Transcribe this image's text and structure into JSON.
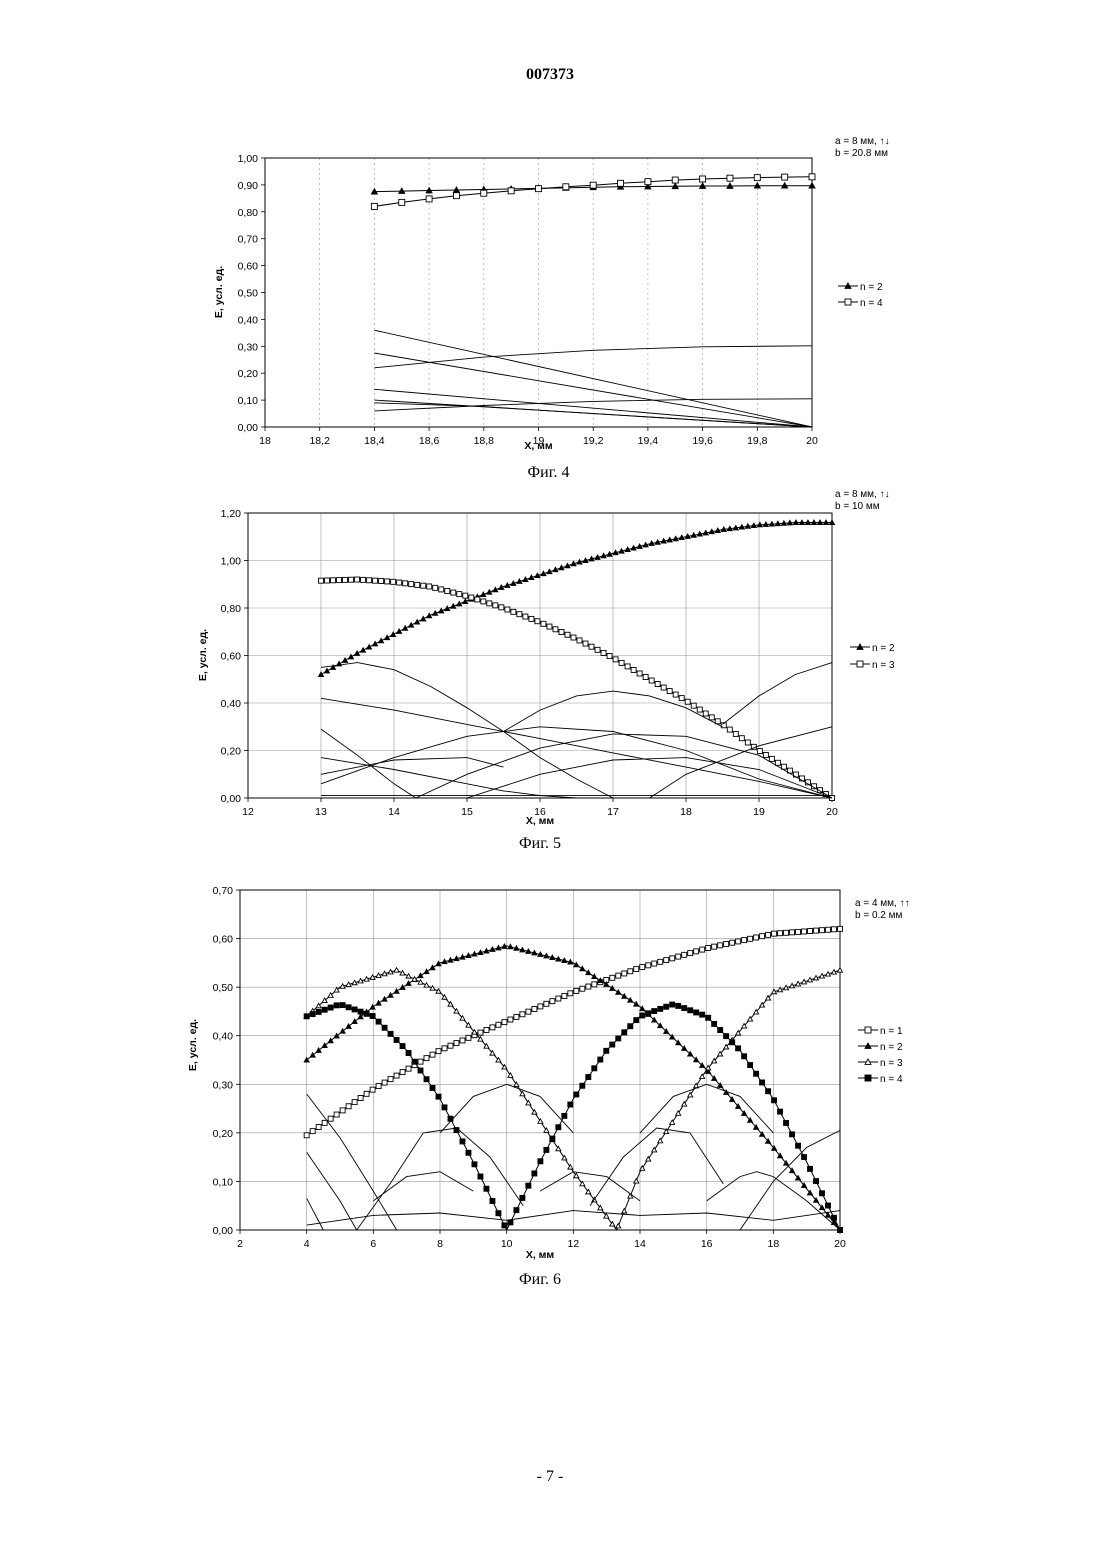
{
  "header": {
    "doc_number": "007373"
  },
  "footer": {
    "page_number": "- 7 -"
  },
  "chart_data": [
    {
      "type": "line",
      "caption": "Фиг. 4",
      "annotation": [
        "a = 8 мм, ↑↓",
        "b = 20.8 мм"
      ],
      "xlabel": "X, мм",
      "ylabel": "E, усл. ед.",
      "xlim": [
        18,
        20
      ],
      "ylim": [
        0,
        1.0
      ],
      "xticks": [
        "18",
        "18,2",
        "18,4",
        "18,6",
        "18,8",
        "19",
        "19,2",
        "19,4",
        "19,6",
        "19,8",
        "20"
      ],
      "yticks": [
        "0,00",
        "0,10",
        "0,20",
        "0,30",
        "0,40",
        "0,50",
        "0,60",
        "0,70",
        "0,80",
        "0,90",
        "1,00"
      ],
      "grid": "vertical",
      "legend": [
        {
          "name": "n = 2",
          "marker": "triangle-filled"
        },
        {
          "name": "n = 4",
          "marker": "square-open"
        }
      ],
      "series": [
        {
          "name": "n = 2",
          "marker": "triangle-filled",
          "x": [
            18.4,
            18.5,
            18.6,
            18.7,
            18.8,
            18.9,
            19.0,
            19.1,
            19.2,
            19.3,
            19.4,
            19.5,
            19.6,
            19.7,
            19.8,
            19.9,
            20.0
          ],
          "y": [
            0.875,
            0.877,
            0.879,
            0.881,
            0.883,
            0.885,
            0.887,
            0.889,
            0.891,
            0.893,
            0.894,
            0.895,
            0.896,
            0.896,
            0.897,
            0.897,
            0.897
          ]
        },
        {
          "name": "n = 4",
          "marker": "square-open",
          "x": [
            18.4,
            18.5,
            18.6,
            18.7,
            18.8,
            18.9,
            19.0,
            19.1,
            19.2,
            19.3,
            19.4,
            19.5,
            19.6,
            19.7,
            19.8,
            19.9,
            20.0
          ],
          "y": [
            0.82,
            0.835,
            0.848,
            0.86,
            0.869,
            0.878,
            0.886,
            0.893,
            0.899,
            0.906,
            0.912,
            0.918,
            0.922,
            0.925,
            0.927,
            0.929,
            0.93
          ]
        },
        {
          "x": [
            18.4,
            20.0
          ],
          "y": [
            0.36,
            0.0
          ]
        },
        {
          "x": [
            18.4,
            20.0
          ],
          "y": [
            0.275,
            0.0
          ]
        },
        {
          "x": [
            18.4,
            18.8,
            19.2,
            19.6,
            20.0
          ],
          "y": [
            0.22,
            0.26,
            0.285,
            0.298,
            0.302
          ]
        },
        {
          "x": [
            18.4,
            20.0
          ],
          "y": [
            0.14,
            0.0
          ]
        },
        {
          "x": [
            18.4,
            20.0
          ],
          "y": [
            0.1,
            0.0
          ]
        },
        {
          "x": [
            18.4,
            18.8,
            19.2,
            19.6,
            20.0
          ],
          "y": [
            0.09,
            0.076,
            0.05,
            0.025,
            0.0
          ]
        },
        {
          "x": [
            18.4,
            18.8,
            19.2,
            19.6,
            20.0
          ],
          "y": [
            0.06,
            0.08,
            0.095,
            0.103,
            0.105
          ]
        }
      ]
    },
    {
      "type": "line",
      "caption": "Фиг. 5",
      "annotation": [
        "a = 8 мм, ↑↓",
        "b = 10 мм"
      ],
      "xlabel": "X, мм",
      "ylabel": "E, усл. ед.",
      "xlim": [
        12,
        20
      ],
      "ylim": [
        0,
        1.2
      ],
      "xticks": [
        "12",
        "13",
        "14",
        "15",
        "16",
        "17",
        "18",
        "19",
        "20"
      ],
      "yticks": [
        "0,00",
        "0,20",
        "0,40",
        "0,60",
        "0,80",
        "1,00",
        "1,20"
      ],
      "grid": "both",
      "legend": [
        {
          "name": "n = 2",
          "marker": "triangle-filled"
        },
        {
          "name": "n = 3",
          "marker": "square-open"
        }
      ],
      "series": [
        {
          "name": "n = 2",
          "marker": "triangle-filled",
          "x": [
            13,
            13.5,
            14,
            14.5,
            15,
            15.5,
            16,
            16.5,
            17,
            17.5,
            18,
            18.5,
            19,
            19.5,
            20
          ],
          "y": [
            0.52,
            0.61,
            0.69,
            0.77,
            0.83,
            0.89,
            0.94,
            0.99,
            1.03,
            1.07,
            1.1,
            1.13,
            1.15,
            1.16,
            1.16
          ]
        },
        {
          "name": "n = 3",
          "marker": "square-open",
          "x": [
            13,
            13.5,
            14,
            14.5,
            15,
            15.5,
            16,
            16.5,
            17,
            17.5,
            18,
            18.5,
            19,
            19.5,
            20
          ],
          "y": [
            0.915,
            0.92,
            0.91,
            0.89,
            0.85,
            0.8,
            0.74,
            0.67,
            0.59,
            0.5,
            0.41,
            0.31,
            0.2,
            0.1,
            0.0
          ]
        },
        {
          "x": [
            13,
            13.5,
            14,
            14.5,
            15,
            15.5,
            16,
            16.5,
            17
          ],
          "y": [
            0.55,
            0.57,
            0.54,
            0.47,
            0.38,
            0.28,
            0.17,
            0.08,
            0.0
          ]
        },
        {
          "x": [
            13,
            14,
            15,
            16,
            17,
            18,
            19,
            20
          ],
          "y": [
            0.42,
            0.37,
            0.31,
            0.25,
            0.19,
            0.13,
            0.07,
            0.0
          ]
        },
        {
          "x": [
            13,
            13.5,
            14,
            14.3
          ],
          "y": [
            0.29,
            0.18,
            0.06,
            0.0
          ]
        },
        {
          "x": [
            14.3,
            15,
            16,
            17,
            18,
            19,
            20
          ],
          "y": [
            0.0,
            0.1,
            0.21,
            0.27,
            0.26,
            0.18,
            0.0
          ]
        },
        {
          "x": [
            13,
            14,
            15,
            16,
            17,
            18,
            19,
            20
          ],
          "y": [
            0.06,
            0.17,
            0.26,
            0.3,
            0.28,
            0.2,
            0.08,
            0.0
          ]
        },
        {
          "x": [
            13,
            14,
            15,
            15.5,
            16,
            16.5,
            16.7
          ],
          "y": [
            0.17,
            0.12,
            0.06,
            0.03,
            0.01,
            0.0,
            0.0
          ]
        },
        {
          "x": [
            15.5,
            16,
            16.5,
            17,
            17.5,
            18,
            18.5
          ],
          "y": [
            0.28,
            0.37,
            0.43,
            0.45,
            0.43,
            0.38,
            0.3
          ]
        },
        {
          "x": [
            13,
            14,
            15,
            15.5
          ],
          "y": [
            0.1,
            0.16,
            0.17,
            0.13
          ]
        },
        {
          "x": [
            17.5,
            18,
            19,
            20
          ],
          "y": [
            0.0,
            0.1,
            0.22,
            0.3
          ]
        },
        {
          "x": [
            15,
            16,
            17,
            18,
            19,
            20
          ],
          "y": [
            0.0,
            0.1,
            0.16,
            0.17,
            0.12,
            0.0
          ]
        },
        {
          "x": [
            18.5,
            19,
            19.5,
            20
          ],
          "y": [
            0.31,
            0.43,
            0.52,
            0.57
          ]
        },
        {
          "x": [
            13,
            20
          ],
          "y": [
            0.01,
            0.01
          ]
        }
      ]
    },
    {
      "type": "line",
      "caption": "Фиг. 6",
      "annotation": [
        "a = 4 мм, ↑↑",
        "b = 0.2 мм"
      ],
      "xlabel": "X, мм",
      "ylabel": "E, усл. ед.",
      "xlim": [
        2,
        20
      ],
      "ylim": [
        0,
        0.7
      ],
      "xticks": [
        "2",
        "4",
        "6",
        "8",
        "10",
        "12",
        "14",
        "16",
        "18",
        "20"
      ],
      "yticks": [
        "0,00",
        "0,10",
        "0,20",
        "0,30",
        "0,40",
        "0,50",
        "0,60",
        "0,70"
      ],
      "grid": "both",
      "legend": [
        {
          "name": "n = 1",
          "marker": "square-open"
        },
        {
          "name": "n = 2",
          "marker": "triangle-filled"
        },
        {
          "name": "n = 3",
          "marker": "triangle-open"
        },
        {
          "name": "n = 4",
          "marker": "square-filled"
        }
      ],
      "series": [
        {
          "name": "n = 1",
          "marker": "square-open",
          "x": [
            4,
            6,
            8,
            10,
            12,
            14,
            16,
            18,
            20
          ],
          "y": [
            0.195,
            0.29,
            0.37,
            0.43,
            0.49,
            0.54,
            0.58,
            0.61,
            0.62
          ]
        },
        {
          "name": "n = 2",
          "marker": "triangle-filled",
          "x": [
            4,
            6,
            8,
            10,
            12,
            14,
            16,
            18,
            20
          ],
          "y": [
            0.35,
            0.46,
            0.55,
            0.585,
            0.55,
            0.46,
            0.33,
            0.17,
            0.0
          ]
        },
        {
          "name": "n = 3",
          "marker": "triangle-open",
          "x": [
            4,
            5,
            6.7,
            8,
            10,
            12,
            13.3,
            14,
            16,
            18,
            20
          ],
          "y": [
            0.44,
            0.5,
            0.535,
            0.49,
            0.33,
            0.12,
            0.0,
            0.12,
            0.33,
            0.49,
            0.535
          ]
        },
        {
          "name": "n = 4",
          "marker": "square-filled",
          "x": [
            4,
            5,
            6,
            7,
            8,
            9,
            10,
            11,
            12,
            13,
            14,
            15,
            16,
            17,
            18,
            19,
            20
          ],
          "y": [
            0.44,
            0.465,
            0.44,
            0.37,
            0.27,
            0.14,
            0.0,
            0.14,
            0.27,
            0.37,
            0.44,
            0.465,
            0.44,
            0.37,
            0.27,
            0.14,
            0.0
          ]
        },
        {
          "x": [
            8,
            9,
            10,
            11,
            12
          ],
          "y": [
            0.2,
            0.275,
            0.3,
            0.275,
            0.2
          ]
        },
        {
          "x": [
            14,
            15,
            16,
            17,
            18
          ],
          "y": [
            0.2,
            0.275,
            0.3,
            0.275,
            0.2
          ]
        },
        {
          "x": [
            4,
            5,
            6,
            6.7
          ],
          "y": [
            0.28,
            0.19,
            0.08,
            0.0
          ]
        },
        {
          "x": [
            4,
            5,
            5.5
          ],
          "y": [
            0.16,
            0.06,
            0.0
          ]
        },
        {
          "x": [
            4,
            4.5
          ],
          "y": [
            0.065,
            0.0
          ]
        },
        {
          "x": [
            5.5,
            6.5,
            7.5,
            8.5,
            9.5,
            10.5
          ],
          "y": [
            0.0,
            0.095,
            0.2,
            0.21,
            0.15,
            0.05
          ]
        },
        {
          "x": [
            6,
            7,
            8,
            9
          ],
          "y": [
            0.06,
            0.11,
            0.12,
            0.08
          ]
        },
        {
          "x": [
            11,
            12,
            13,
            14
          ],
          "y": [
            0.08,
            0.12,
            0.11,
            0.06
          ]
        },
        {
          "x": [
            12.5,
            13.5,
            14.5,
            15.5,
            16.5
          ],
          "y": [
            0.05,
            0.15,
            0.21,
            0.2,
            0.095
          ]
        },
        {
          "x": [
            16,
            17,
            17.5,
            18,
            19,
            20
          ],
          "y": [
            0.06,
            0.11,
            0.12,
            0.11,
            0.06,
            0.0
          ]
        },
        {
          "x": [
            17,
            18,
            19,
            20
          ],
          "y": [
            0.0,
            0.1,
            0.17,
            0.205
          ]
        },
        {
          "x": [
            4,
            6,
            8,
            10,
            12,
            14,
            16,
            18,
            20
          ],
          "y": [
            0.01,
            0.03,
            0.035,
            0.02,
            0.04,
            0.03,
            0.035,
            0.02,
            0.04
          ]
        }
      ]
    }
  ]
}
